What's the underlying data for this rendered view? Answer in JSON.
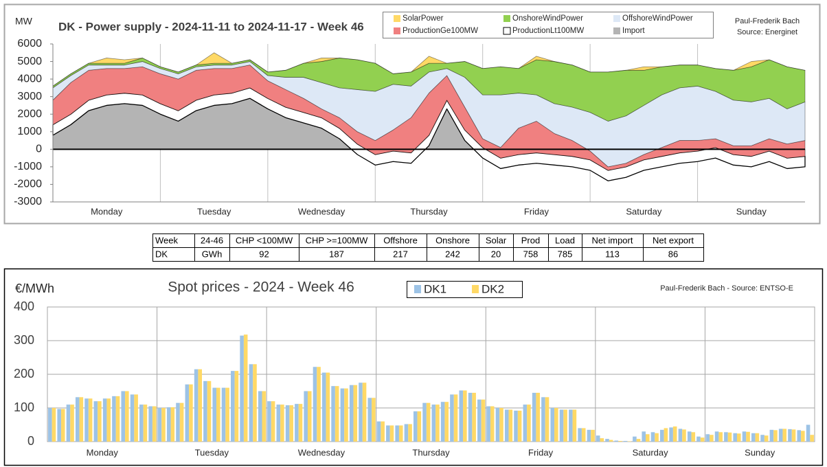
{
  "chart_data": [
    {
      "type": "area",
      "stacked": true,
      "title": "DK - Power supply - 2024-11-11 to 2024-11-17 - Week 46",
      "ylabel": "MW",
      "credits": [
        "Paul-Frederik Bach",
        "Source: Energinet"
      ],
      "days": [
        "Monday",
        "Tuesday",
        "Wednesday",
        "Thursday",
        "Friday",
        "Saturday",
        "Sunday"
      ],
      "x": [
        0,
        4,
        8,
        12,
        16,
        20,
        24,
        28,
        32,
        36,
        40,
        44,
        48,
        52,
        56,
        60,
        64,
        68,
        72,
        76,
        80,
        84,
        88,
        92,
        96,
        100,
        104,
        108,
        112,
        116,
        120,
        124,
        128,
        132,
        136,
        140,
        144,
        148,
        152,
        156,
        160,
        164,
        168
      ],
      "xlim": [
        0,
        168
      ],
      "ylim": [
        -3000,
        6000
      ],
      "yticks": [
        -3000,
        -2000,
        -1000,
        0,
        1000,
        2000,
        3000,
        4000,
        5000,
        6000
      ],
      "series": [
        {
          "name": "Import",
          "color": "#b4b4b4",
          "values": [
            800,
            1400,
            2200,
            2500,
            2600,
            2500,
            2000,
            1600,
            2200,
            2500,
            2600,
            2900,
            2300,
            1800,
            1500,
            1200,
            600,
            -300,
            -900,
            -700,
            -800,
            200,
            2300,
            500,
            -500,
            -1100,
            -900,
            -800,
            -900,
            -1000,
            -1200,
            -1800,
            -1600,
            -1200,
            -1000,
            -800,
            -700,
            -500,
            -900,
            -1000,
            -700,
            -1100,
            -1000
          ]
        },
        {
          "name": "ProductionLt100MW",
          "color": "#ffffff",
          "values": [
            600,
            600,
            600,
            600,
            600,
            600,
            600,
            600,
            600,
            600,
            600,
            600,
            600,
            600,
            600,
            600,
            600,
            600,
            600,
            600,
            600,
            600,
            500,
            600,
            600,
            600,
            600,
            600,
            600,
            600,
            600,
            600,
            600,
            600,
            600,
            600,
            600,
            600,
            600,
            600,
            600,
            600,
            600
          ]
        },
        {
          "name": "ProductionGe100MW",
          "color": "#f08080",
          "values": [
            1400,
            1800,
            1700,
            1500,
            1400,
            1600,
            1700,
            1800,
            1700,
            1500,
            1400,
            1300,
            1000,
            1000,
            800,
            500,
            600,
            700,
            800,
            1200,
            2000,
            2400,
            1400,
            1300,
            500,
            600,
            1500,
            1800,
            1200,
            900,
            500,
            200,
            200,
            300,
            500,
            700,
            600,
            500,
            500,
            600,
            700,
            800,
            900
          ]
        },
        {
          "name": "OffshoreWindPower",
          "color": "#dde8f6",
          "values": [
            700,
            400,
            300,
            200,
            200,
            300,
            300,
            300,
            200,
            200,
            200,
            200,
            300,
            700,
            1200,
            1500,
            1700,
            2400,
            2800,
            2600,
            1800,
            1200,
            400,
            1700,
            2500,
            3000,
            2000,
            1500,
            1700,
            1900,
            2200,
            2600,
            2700,
            2800,
            3000,
            3000,
            3100,
            2700,
            2600,
            2500,
            2300,
            2000,
            2200
          ]
        },
        {
          "name": "OnshoreWindPower",
          "color": "#92d050",
          "values": [
            100,
            100,
            100,
            100,
            100,
            200,
            100,
            100,
            100,
            100,
            100,
            100,
            200,
            400,
            800,
            1200,
            1700,
            1700,
            1600,
            600,
            800,
            500,
            300,
            900,
            1500,
            1600,
            1400,
            2000,
            2400,
            2400,
            2300,
            2800,
            2600,
            2000,
            1600,
            1300,
            1200,
            1300,
            1700,
            2000,
            2200,
            2400,
            1800
          ]
        },
        {
          "name": "SolarPower",
          "color": "#ffd966",
          "values": [
            0,
            0,
            0,
            300,
            200,
            0,
            0,
            0,
            0,
            600,
            0,
            0,
            0,
            0,
            0,
            200,
            0,
            0,
            0,
            0,
            0,
            400,
            0,
            0,
            0,
            0,
            0,
            200,
            0,
            0,
            0,
            0,
            0,
            200,
            0,
            0,
            0,
            0,
            0,
            300,
            0,
            0,
            0
          ]
        }
      ]
    },
    {
      "type": "bar",
      "title": "Spot prices - 2024 - Week 46",
      "ylabel": "€/MWh",
      "credits": [
        "Paul-Frederik Bach - Source: ENTSO-E"
      ],
      "days": [
        "Monday",
        "Tuesday",
        "Wednesday",
        "Thursday",
        "Friday",
        "Saturday",
        "Sunday"
      ],
      "ylim": [
        0,
        400
      ],
      "yticks": [
        0,
        100,
        200,
        300,
        400
      ],
      "grid": true,
      "series": [
        {
          "name": "DK1",
          "color": "#9dc3e6",
          "values": [
            100,
            97,
            110,
            132,
            128,
            120,
            128,
            135,
            150,
            140,
            110,
            105,
            100,
            102,
            115,
            170,
            215,
            180,
            160,
            160,
            210,
            315,
            230,
            150,
            120,
            110,
            108,
            112,
            150,
            222,
            205,
            165,
            158,
            168,
            175,
            130,
            60,
            48,
            48,
            52,
            90,
            115,
            110,
            118,
            140,
            152,
            145,
            125,
            105,
            100,
            95,
            92,
            110,
            145,
            132,
            100,
            95,
            95,
            40,
            35,
            18,
            8,
            3,
            2,
            15,
            30,
            28,
            35,
            42,
            38,
            30,
            15,
            22,
            30,
            28,
            25,
            30,
            25,
            20,
            35,
            38,
            37,
            34,
            50
          ]
        },
        {
          "name": "DK2",
          "color": "#ffd966",
          "values": [
            100,
            97,
            110,
            132,
            128,
            120,
            128,
            135,
            150,
            140,
            110,
            105,
            100,
            102,
            115,
            170,
            215,
            180,
            160,
            160,
            210,
            318,
            230,
            150,
            120,
            110,
            108,
            112,
            150,
            222,
            205,
            165,
            158,
            168,
            175,
            130,
            60,
            48,
            48,
            52,
            90,
            115,
            110,
            118,
            140,
            152,
            145,
            125,
            105,
            100,
            95,
            92,
            110,
            145,
            132,
            100,
            95,
            95,
            40,
            35,
            10,
            5,
            2,
            1,
            8,
            22,
            25,
            40,
            45,
            36,
            28,
            12,
            20,
            28,
            27,
            24,
            29,
            25,
            18,
            34,
            38,
            36,
            32,
            20
          ]
        }
      ]
    }
  ],
  "table": {
    "rows": [
      [
        "Week",
        "24-46",
        "CHP <100MW",
        "CHP >=100MW",
        "Offshore",
        "Onshore",
        "Solar",
        "Prod",
        "Load",
        "Net import",
        "Net export"
      ],
      [
        "DK",
        "GWh",
        "92",
        "187",
        "217",
        "242",
        "20",
        "758",
        "785",
        "113",
        "86"
      ]
    ]
  }
}
